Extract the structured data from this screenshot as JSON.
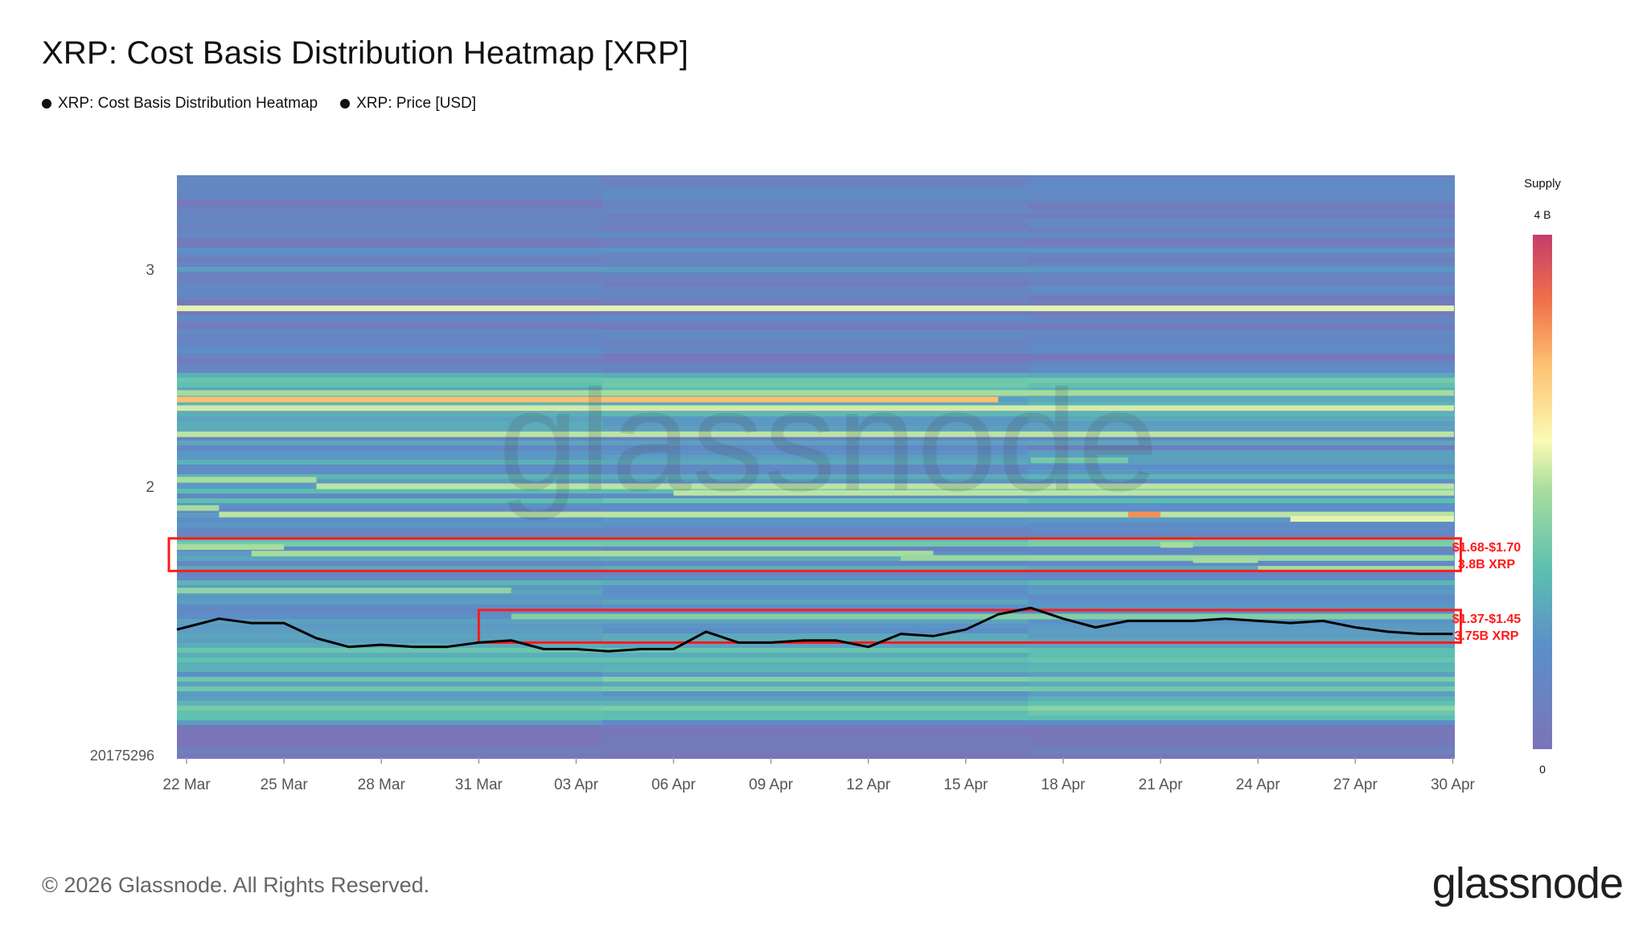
{
  "title": "XRP: Cost Basis Distribution Heatmap [XRP]",
  "legend": [
    {
      "label": "XRP: Cost Basis Distribution Heatmap"
    },
    {
      "label": "XRP: Price [USD]"
    }
  ],
  "colorbar": {
    "title": "Supply",
    "max_label": "4 B",
    "min_label": "0"
  },
  "watermark": "glassnode",
  "footer": {
    "copyright": "© 2026 Glassnode. All Rights Reserved.",
    "logo": "glassnode"
  },
  "colors": {
    "heat_low": "#7b74b8",
    "heat_mid": "#fbfbb4",
    "heat_high": "#c53d6a",
    "price_line": "#000000",
    "annotation": "#ff1a1a"
  },
  "chart_data": {
    "type": "heatmap",
    "x_ticks": [
      "22 Mar",
      "25 Mar",
      "28 Mar",
      "31 Mar",
      "03 Apr",
      "06 Apr",
      "09 Apr",
      "12 Apr",
      "15 Apr",
      "18 Apr",
      "21 Apr",
      "24 Apr",
      "27 Apr",
      "30 Apr"
    ],
    "y_ticks": [
      {
        "value": 3,
        "label": "3"
      },
      {
        "value": 2,
        "label": "2"
      }
    ],
    "y_min_label": "20175296",
    "ylim": [
      1.0,
      3.4
    ],
    "supply_range": [
      0,
      4
    ],
    "bands": [
      {
        "price": 2.82,
        "supply": 2.3,
        "from": "22 Mar",
        "to": "30 Apr"
      },
      {
        "price": 2.43,
        "supply": 2.0,
        "from": "22 Mar",
        "to": "30 Apr"
      },
      {
        "price": 2.4,
        "supply": 3.0,
        "from": "22 Mar",
        "to": "15 Apr"
      },
      {
        "price": 2.36,
        "supply": 2.2,
        "from": "22 Mar",
        "to": "30 Apr"
      },
      {
        "price": 2.24,
        "supply": 2.1,
        "from": "22 Mar",
        "to": "30 Apr"
      },
      {
        "price": 2.12,
        "supply": 1.6,
        "from": "17 Apr",
        "to": "19 Apr"
      },
      {
        "price": 2.03,
        "supply": 2.0,
        "from": "22 Mar",
        "to": "25 Mar"
      },
      {
        "price": 2.0,
        "supply": 2.1,
        "from": "26 Mar",
        "to": "30 Apr"
      },
      {
        "price": 1.97,
        "supply": 2.1,
        "from": "06 Apr",
        "to": "30 Apr"
      },
      {
        "price": 1.9,
        "supply": 2.0,
        "from": "22 Mar",
        "to": "22 Mar"
      },
      {
        "price": 1.87,
        "supply": 2.1,
        "from": "23 Mar",
        "to": "30 Apr"
      },
      {
        "price": 1.87,
        "supply": 3.3,
        "from": "20 Apr",
        "to": "20 Apr"
      },
      {
        "price": 1.85,
        "supply": 2.3,
        "from": "25 Apr",
        "to": "30 Apr"
      },
      {
        "price": 1.73,
        "supply": 2.0,
        "from": "21 Apr",
        "to": "21 Apr"
      },
      {
        "price": 1.72,
        "supply": 2.0,
        "from": "22 Mar",
        "to": "24 Mar"
      },
      {
        "price": 1.69,
        "supply": 2.0,
        "from": "24 Mar",
        "to": "13 Apr"
      },
      {
        "price": 1.67,
        "supply": 1.9,
        "from": "13 Apr",
        "to": "30 Apr"
      },
      {
        "price": 1.66,
        "supply": 2.0,
        "from": "22 Apr",
        "to": "23 Apr"
      },
      {
        "price": 1.62,
        "supply": 2.0,
        "from": "24 Apr",
        "to": "30 Apr"
      },
      {
        "price": 1.52,
        "supply": 1.8,
        "from": "22 Mar",
        "to": "31 Mar"
      },
      {
        "price": 1.4,
        "supply": 1.7,
        "from": "01 Apr",
        "to": "30 Apr"
      }
    ],
    "series": [
      {
        "name": "XRP: Price [USD]",
        "type": "line",
        "x": [
          "22 Mar",
          "23 Mar",
          "24 Mar",
          "25 Mar",
          "26 Mar",
          "27 Mar",
          "28 Mar",
          "29 Mar",
          "30 Mar",
          "31 Mar",
          "01 Apr",
          "02 Apr",
          "03 Apr",
          "04 Apr",
          "05 Apr",
          "06 Apr",
          "07 Apr",
          "08 Apr",
          "09 Apr",
          "10 Apr",
          "11 Apr",
          "12 Apr",
          "13 Apr",
          "14 Apr",
          "15 Apr",
          "16 Apr",
          "17 Apr",
          "18 Apr",
          "19 Apr",
          "20 Apr",
          "21 Apr",
          "22 Apr",
          "23 Apr",
          "24 Apr",
          "25 Apr",
          "26 Apr",
          "27 Apr",
          "28 Apr",
          "29 Apr",
          "30 Apr"
        ],
        "values": [
          1.34,
          1.39,
          1.37,
          1.37,
          1.3,
          1.26,
          1.27,
          1.26,
          1.26,
          1.28,
          1.29,
          1.25,
          1.25,
          1.24,
          1.25,
          1.25,
          1.33,
          1.28,
          1.28,
          1.29,
          1.29,
          1.26,
          1.32,
          1.31,
          1.34,
          1.41,
          1.44,
          1.39,
          1.35,
          1.38,
          1.38,
          1.38,
          1.39,
          1.38,
          1.37,
          1.38,
          1.35,
          1.33,
          1.32,
          1.32
        ]
      }
    ],
    "annotations": [
      {
        "label": "$1.68-$1.70",
        "sublabel": "3.8B XRP",
        "price_low": 1.61,
        "price_high": 1.76,
        "from": "22 Mar",
        "to": "30 Apr"
      },
      {
        "label": "$1.37-$1.45",
        "sublabel": "3.75B XRP",
        "price_low": 1.28,
        "price_high": 1.43,
        "from": "31 Mar",
        "to": "30 Apr"
      }
    ]
  }
}
